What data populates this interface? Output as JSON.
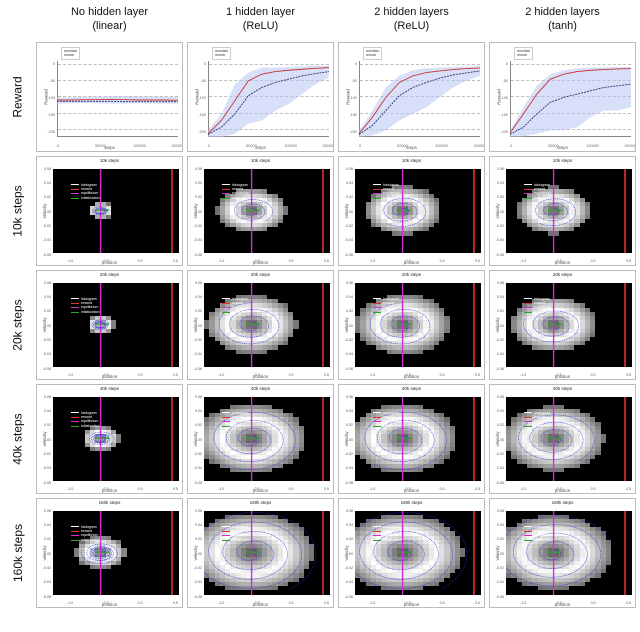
{
  "columns": [
    {
      "title_line1": "No hidden layer",
      "title_line2": "(linear)"
    },
    {
      "title_line1": "1 hidden layer",
      "title_line2": "(ReLU)"
    },
    {
      "title_line1": "2 hidden layers",
      "title_line2": "(ReLU)"
    },
    {
      "title_line1": "2 hidden layers",
      "title_line2": "(tanh)"
    }
  ],
  "rows": [
    {
      "label": "Reward",
      "kind": "reward"
    },
    {
      "label": "10k steps",
      "kind": "phase",
      "title_steps": "10k steps"
    },
    {
      "label": "20k steps",
      "kind": "phase",
      "title_steps": "20k steps"
    },
    {
      "label": "40k steps",
      "kind": "phase",
      "title_steps": "40k steps"
    },
    {
      "label": "160k steps",
      "kind": "phase",
      "title_steps": "160k steps"
    }
  ],
  "reward_common": {
    "legend": [
      "median",
      "mean"
    ],
    "ylabel": "Reward",
    "xlabel": "steps",
    "xticks": [
      "0",
      "50000",
      "100000",
      "150000"
    ],
    "yticks": [
      "-200",
      "-150",
      "-100",
      "-50",
      "0"
    ],
    "ylim": [
      -220,
      10
    ],
    "xlim": [
      0,
      160000
    ],
    "grid_y": [
      -200,
      -150,
      -100,
      -50,
      0
    ],
    "band_color": "#b8c4f2",
    "band_opacity": 0.55,
    "median_color": "#c83232",
    "mean_color": "#2a3070",
    "line_width": 0.9,
    "grid_color": "#bdbdbd"
  },
  "reward_series": [
    {
      "band_top": [
        [
          -100
        ],
        [
          -100
        ],
        [
          -98
        ],
        [
          -98
        ],
        [
          -96
        ],
        [
          -96
        ],
        [
          -97
        ],
        [
          -97
        ],
        [
          -98
        ],
        [
          -98
        ]
      ],
      "band_bot": [
        [
          -120
        ],
        [
          -118
        ],
        [
          -117
        ],
        [
          -118
        ],
        [
          -119
        ],
        [
          -119
        ],
        [
          -118
        ],
        [
          -119
        ],
        [
          -119
        ],
        [
          -119
        ]
      ],
      "median": [
        [
          -108
        ],
        [
          -108
        ],
        [
          -107
        ],
        [
          -107
        ],
        [
          -106
        ],
        [
          -107
        ],
        [
          -108
        ],
        [
          -108
        ],
        [
          -108
        ],
        [
          -109
        ]
      ],
      "mean": [
        [
          -112
        ],
        [
          -112
        ],
        [
          -112
        ],
        [
          -112
        ],
        [
          -112
        ],
        [
          -113
        ],
        [
          -113
        ],
        [
          -113
        ],
        [
          -113
        ],
        [
          -113
        ]
      ]
    },
    {
      "band_top": [
        [
          -200
        ],
        [
          -150
        ],
        [
          -60
        ],
        [
          -25
        ],
        [
          -10
        ],
        [
          -10
        ],
        [
          -8
        ],
        [
          -6
        ],
        [
          -5
        ],
        [
          -5
        ]
      ],
      "band_bot": [
        [
          -220
        ],
        [
          -220
        ],
        [
          -210
        ],
        [
          -180
        ],
        [
          -170
        ],
        [
          -140
        ],
        [
          -120
        ],
        [
          -90
        ],
        [
          -60
        ],
        [
          -40
        ]
      ],
      "median": [
        [
          -210
        ],
        [
          -170
        ],
        [
          -110
        ],
        [
          -50
        ],
        [
          -30
        ],
        [
          -22
        ],
        [
          -18
        ],
        [
          -15
        ],
        [
          -12
        ],
        [
          -10
        ]
      ],
      "mean": [
        [
          -212
        ],
        [
          -190
        ],
        [
          -150
        ],
        [
          -95
        ],
        [
          -70
        ],
        [
          -55
        ],
        [
          -45
        ],
        [
          -35
        ],
        [
          -28
        ],
        [
          -22
        ]
      ]
    },
    {
      "band_top": [
        [
          -200
        ],
        [
          -140
        ],
        [
          -70
        ],
        [
          -35
        ],
        [
          -18
        ],
        [
          -12
        ],
        [
          -10
        ],
        [
          -8
        ],
        [
          -7
        ],
        [
          -6
        ]
      ],
      "band_bot": [
        [
          -220
        ],
        [
          -215
        ],
        [
          -200
        ],
        [
          -170
        ],
        [
          -150
        ],
        [
          -130
        ],
        [
          -100
        ],
        [
          -70
        ],
        [
          -50
        ],
        [
          -35
        ]
      ],
      "median": [
        [
          -210
        ],
        [
          -160
        ],
        [
          -100
        ],
        [
          -55
        ],
        [
          -35
        ],
        [
          -25
        ],
        [
          -20
        ],
        [
          -16
        ],
        [
          -13
        ],
        [
          -11
        ]
      ],
      "mean": [
        [
          -212
        ],
        [
          -185
        ],
        [
          -140
        ],
        [
          -95
        ],
        [
          -70
        ],
        [
          -55
        ],
        [
          -42
        ],
        [
          -32
        ],
        [
          -26
        ],
        [
          -20
        ]
      ]
    },
    {
      "band_top": [
        [
          -200
        ],
        [
          -130
        ],
        [
          -65
        ],
        [
          -30
        ],
        [
          -18
        ],
        [
          -12
        ],
        [
          -10
        ],
        [
          -9
        ],
        [
          -8
        ],
        [
          -8
        ]
      ],
      "band_bot": [
        [
          -220
        ],
        [
          -218
        ],
        [
          -210
        ],
        [
          -200
        ],
        [
          -200
        ],
        [
          -190
        ],
        [
          -160
        ],
        [
          -140
        ],
        [
          -140
        ],
        [
          -130
        ]
      ],
      "median": [
        [
          -208
        ],
        [
          -150
        ],
        [
          -90
        ],
        [
          -45
        ],
        [
          -30
        ],
        [
          -22
        ],
        [
          -18
        ],
        [
          -16
        ],
        [
          -14
        ],
        [
          -13
        ]
      ],
      "mean": [
        [
          -212
        ],
        [
          -190
        ],
        [
          -150
        ],
        [
          -115
        ],
        [
          -100
        ],
        [
          -90
        ],
        [
          -80
        ],
        [
          -70
        ],
        [
          -65
        ],
        [
          -60
        ]
      ]
    }
  ],
  "phase_common": {
    "xlabel": "position",
    "ylabel": "velocity",
    "xlim": [
      -1.2,
      0.6
    ],
    "ylim": [
      -0.06,
      0.06
    ],
    "xticks": [
      "-1.0",
      "-0.5",
      "0.0",
      "0.5"
    ],
    "yticks": [
      "-0.06",
      "-0.04",
      "-0.02",
      "0.00",
      "0.02",
      "0.04",
      "0.06"
    ],
    "legend": [
      {
        "label": "histogram",
        "color": "#ffffff"
      },
      {
        "label": "reward",
        "color": "#e03030"
      },
      {
        "label": "equilibrium",
        "color": "#d030d0"
      },
      {
        "label": "initialization",
        "color": "#2aa52a"
      }
    ],
    "reward_pos": 0.5,
    "equilibrium_pos": -0.52,
    "init_range": [
      -0.6,
      -0.4
    ],
    "traj_color": "#2030d8",
    "traj_width": 0.6,
    "heat_cols": 24,
    "heat_rows": 20,
    "bg": "#000000"
  },
  "phase_heat_radius": {
    "r0c0": 0.2,
    "r0c1": 0.55,
    "r0c2": 0.6,
    "r0c3": 0.58,
    "r1c0": 0.22,
    "r1c1": 0.72,
    "r1c2": 0.74,
    "r1c3": 0.68,
    "r2c0": 0.3,
    "r2c1": 0.86,
    "r2c2": 0.85,
    "r2c3": 0.8,
    "r3c0": 0.4,
    "r3c1": 0.98,
    "r3c2": 0.96,
    "r3c3": 0.92
  },
  "spiral": {
    "r0c0": {
      "turns": 2.0,
      "growth": 0.05,
      "scaleY": 0.8,
      "double": true
    },
    "r0c1": {
      "turns": 2.4,
      "growth": 0.16,
      "scaleY": 0.9,
      "double": false
    },
    "r0c2": {
      "turns": 2.6,
      "growth": 0.18,
      "scaleY": 0.92,
      "double": false
    },
    "r0c3": {
      "turns": 2.6,
      "growth": 0.17,
      "scaleY": 0.92,
      "double": false
    },
    "r1c0": {
      "turns": 2.2,
      "growth": 0.06,
      "scaleY": 0.8,
      "double": true
    },
    "r1c1": {
      "turns": 3.0,
      "growth": 0.22,
      "scaleY": 0.95,
      "double": false
    },
    "r1c2": {
      "turns": 3.0,
      "growth": 0.22,
      "scaleY": 0.95,
      "double": false
    },
    "r1c3": {
      "turns": 2.8,
      "growth": 0.2,
      "scaleY": 0.92,
      "double": false
    },
    "r2c0": {
      "turns": 2.4,
      "growth": 0.09,
      "scaleY": 0.85,
      "double": true
    },
    "r2c1": {
      "turns": 3.6,
      "growth": 0.26,
      "scaleY": 0.98,
      "double": false
    },
    "r2c2": {
      "turns": 3.6,
      "growth": 0.26,
      "scaleY": 0.98,
      "double": false
    },
    "r2c3": {
      "turns": 3.4,
      "growth": 0.24,
      "scaleY": 0.95,
      "double": false
    },
    "r3c0": {
      "turns": 2.8,
      "growth": 0.12,
      "scaleY": 0.9,
      "double": true
    },
    "r3c1": {
      "turns": 4.4,
      "growth": 0.3,
      "scaleY": 1.0,
      "double": false
    },
    "r3c2": {
      "turns": 4.4,
      "growth": 0.3,
      "scaleY": 1.0,
      "double": false
    },
    "r3c3": {
      "turns": 4.2,
      "growth": 0.28,
      "scaleY": 0.98,
      "double": false
    }
  }
}
